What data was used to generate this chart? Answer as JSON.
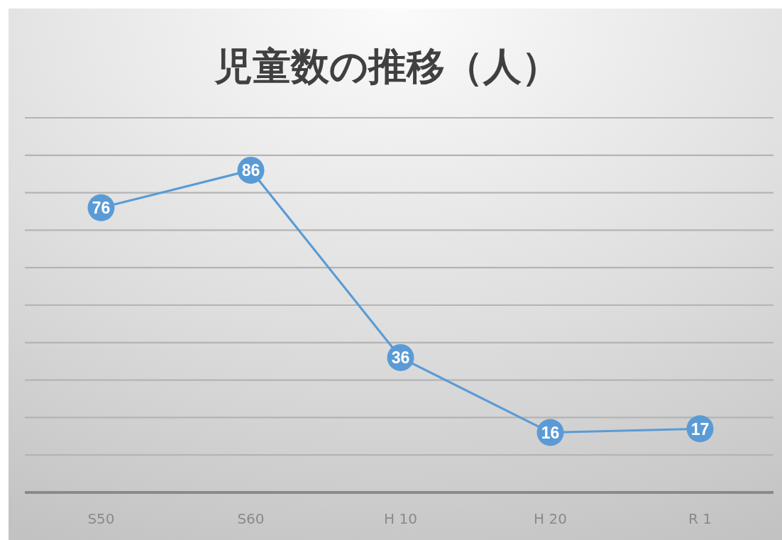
{
  "chart_data": {
    "type": "line",
    "title": "児童数の推移（人）",
    "categories": [
      "S50",
      "S60",
      "H 10",
      "H 20",
      "R 1"
    ],
    "series": [
      {
        "color": "#5b9bd5",
        "values": [
          76,
          86,
          36,
          16,
          17
        ]
      }
    ],
    "ylim": [
      0,
      100
    ],
    "yticks": [
      {
        "value": 0,
        "label": null
      },
      {
        "value": 10,
        "label": null
      },
      {
        "value": 20,
        "label": null
      },
      {
        "value": 30,
        "label": null
      },
      {
        "value": 40,
        "label": null
      },
      {
        "value": 50,
        "label": null
      },
      {
        "value": 60,
        "label": null
      },
      {
        "value": 70,
        "label": null
      },
      {
        "value": 80,
        "label": null
      },
      {
        "value": 90,
        "label": null
      },
      {
        "value": 100,
        "label": null
      }
    ],
    "grid": "y",
    "tick_labels": "x",
    "marker": "circle",
    "data_labels": true
  }
}
